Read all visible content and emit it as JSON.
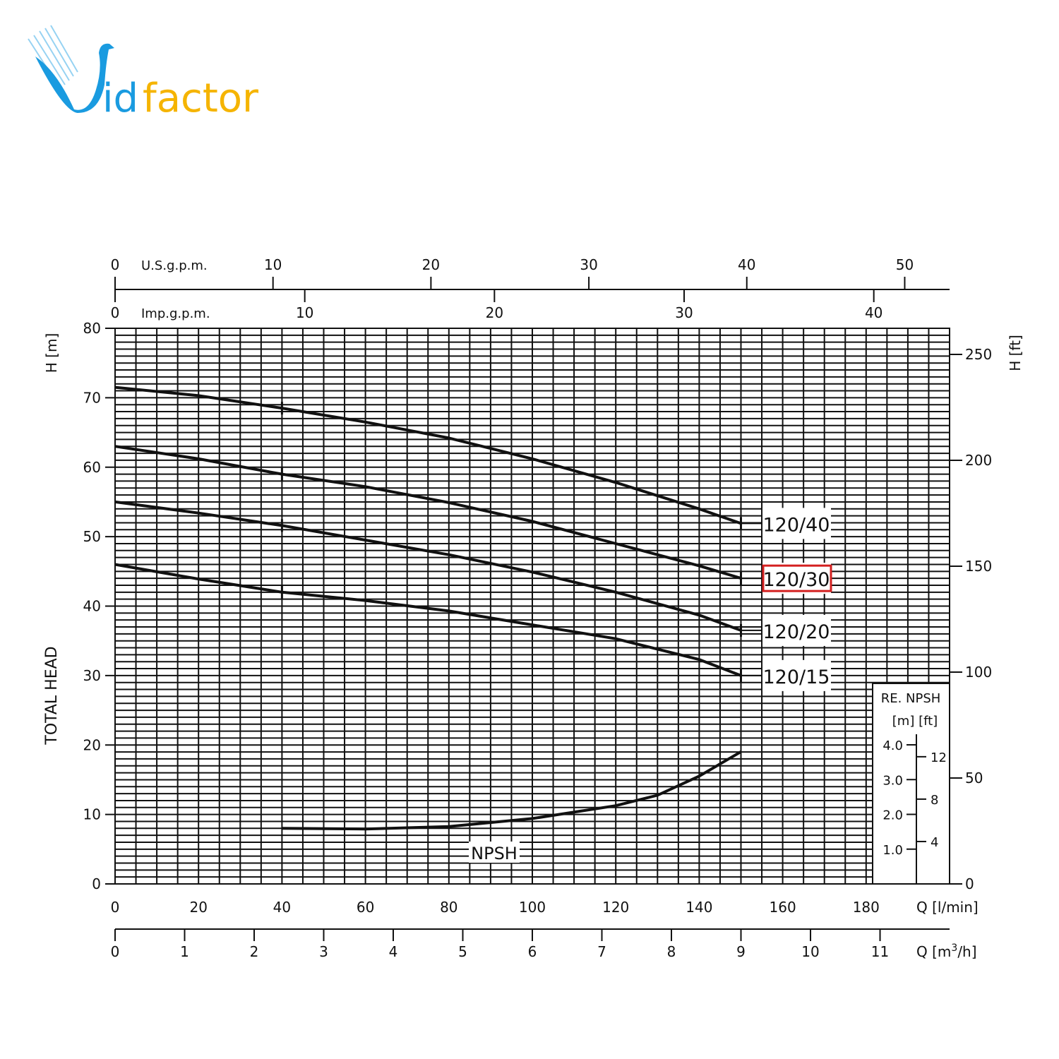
{
  "logo": {
    "text_id": "id",
    "text_factor": "factor",
    "colors": {
      "blue": "#1a9be0",
      "orange": "#f5b400"
    }
  },
  "chart_data": {
    "type": "line",
    "title": "",
    "xlabel": "Q [l/min]",
    "xlim": [
      0,
      200
    ],
    "x_ticks": [
      0,
      20,
      40,
      60,
      80,
      100,
      120,
      140,
      160,
      180
    ],
    "ylabel_left": "H [m]",
    "ylabel_left_title": "TOTAL HEAD",
    "ylim": [
      0,
      80
    ],
    "y_ticks": [
      0,
      10,
      20,
      30,
      40,
      50,
      60,
      70,
      80
    ],
    "ylabel_right": "H [ft]",
    "y_right_ticks": [
      0,
      50,
      100,
      150,
      200,
      250
    ],
    "secondary_x_axes": [
      {
        "label": "U.S.g.p.m.",
        "position": "top",
        "ticks": [
          0,
          10,
          20,
          30,
          40,
          50
        ],
        "l_per_min_per_unit": 3.785
      },
      {
        "label": "Imp.g.p.m.",
        "position": "top",
        "ticks": [
          0,
          10,
          20,
          30,
          40
        ],
        "l_per_min_per_unit": 4.546
      },
      {
        "label": "Q [m",
        "label_sup": "3",
        "label_end": "/h]",
        "position": "bottom",
        "ticks": [
          0,
          1,
          2,
          3,
          4,
          5,
          6,
          7,
          8,
          9,
          10,
          11
        ],
        "l_per_min_per_unit": 16.667
      }
    ],
    "grid": true,
    "series": [
      {
        "name": "120/40",
        "x": [
          0,
          20,
          40,
          60,
          80,
          100,
          120,
          140,
          150
        ],
        "y": [
          71.5,
          70.3,
          68.5,
          66.5,
          64.2,
          61.2,
          57.8,
          54,
          51.9
        ],
        "highlighted": false
      },
      {
        "name": "120/30",
        "x": [
          0,
          20,
          40,
          60,
          80,
          100,
          120,
          140,
          150
        ],
        "y": [
          63,
          61.2,
          59,
          57.2,
          54.9,
          52.2,
          49,
          45.8,
          44
        ],
        "highlighted": true
      },
      {
        "name": "120/20",
        "x": [
          0,
          20,
          40,
          60,
          80,
          100,
          120,
          140,
          150
        ],
        "y": [
          55,
          53.4,
          51.6,
          49.5,
          47.4,
          44.9,
          42,
          38.7,
          36.5
        ],
        "highlighted": false
      },
      {
        "name": "120/15",
        "x": [
          0,
          20,
          40,
          60,
          80,
          100,
          120,
          140,
          150
        ],
        "y": [
          46,
          43.9,
          42,
          40.8,
          39.3,
          37.3,
          35.3,
          32.3,
          30
        ],
        "highlighted": false
      }
    ],
    "npsh": {
      "label": "NPSH",
      "inset_title": "RE. NPSH",
      "inset_units": "[m] [ft]",
      "m_ticks": [
        "1.0",
        "2.0",
        "3.0",
        "4.0"
      ],
      "ft_ticks": [
        "4",
        "8",
        "12"
      ],
      "x": [
        40,
        60,
        80,
        100,
        120,
        130,
        140,
        150
      ],
      "y_m": [
        1.6,
        1.58,
        1.65,
        1.88,
        2.25,
        2.55,
        3.1,
        3.8
      ]
    },
    "highlight_color": "#d42020"
  }
}
